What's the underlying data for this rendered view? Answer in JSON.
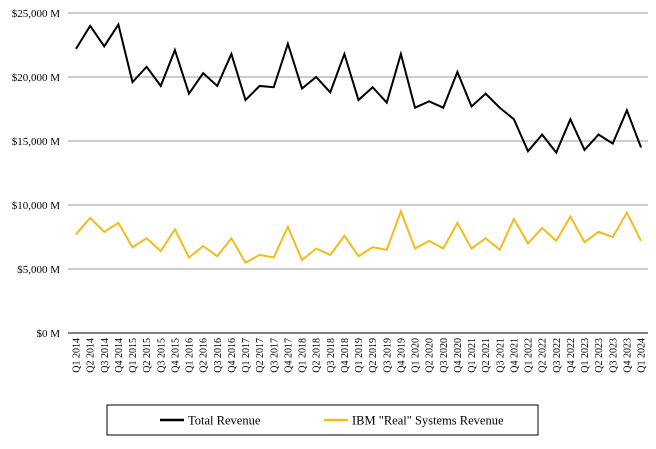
{
  "chart_data": {
    "type": "line",
    "title": "",
    "xlabel": "",
    "ylabel": "",
    "ylim": [
      0,
      25000
    ],
    "y_ticks": [
      0,
      5000,
      10000,
      15000,
      20000,
      25000
    ],
    "y_tick_labels": [
      "$0 M",
      "$5,000 M",
      "$10,000 M",
      "$15,000 M",
      "$20,000 M",
      "$25,000 M"
    ],
    "grid": "horizontal",
    "legend_position": "bottom",
    "categories": [
      "Q1 2014",
      "Q2 2014",
      "Q3 2014",
      "Q4 2014",
      "Q1 2015",
      "Q2 2015",
      "Q3 2015",
      "Q4 2015",
      "Q1 2016",
      "Q2 2016",
      "Q3 2016",
      "Q4 2016",
      "Q1 2017",
      "Q2 2017",
      "Q3 2017",
      "Q4 2017",
      "Q1 2018",
      "Q2 2018",
      "Q3 2018",
      "Q4 2018",
      "Q1 2019",
      "Q2 2019",
      "Q3 2019",
      "Q4 2019",
      "Q1 2020",
      "Q2 2020",
      "Q3 2020",
      "Q4 2020",
      "Q1 2021",
      "Q2 2021",
      "Q3 2021",
      "Q4 2021",
      "Q1 2022",
      "Q2 2022",
      "Q3 2022",
      "Q4 2022",
      "Q1 2023",
      "Q2 2023",
      "Q3 2023",
      "Q4 2023",
      "Q1 2024"
    ],
    "series": [
      {
        "name": "Total Revenue",
        "color": "#000000",
        "values": [
          22200,
          24000,
          22400,
          24100,
          19600,
          20800,
          19300,
          22100,
          18700,
          20300,
          19300,
          21800,
          18200,
          19300,
          19200,
          22600,
          19100,
          20000,
          18800,
          21800,
          18200,
          19200,
          18000,
          21800,
          17600,
          18100,
          17600,
          20400,
          17700,
          18700,
          17600,
          16700,
          14200,
          15500,
          14100,
          16700,
          14300,
          15500,
          14800,
          17400,
          14500
        ]
      },
      {
        "name": "IBM \"Real\" Systems Revenue",
        "color": "#F2BC1B",
        "values": [
          7700,
          9000,
          7900,
          8600,
          6700,
          7400,
          6400,
          8100,
          5900,
          6800,
          6000,
          7400,
          5500,
          6100,
          5900,
          8300,
          5700,
          6600,
          6100,
          7600,
          6000,
          6700,
          6500,
          9500,
          6600,
          7200,
          6600,
          8600,
          6600,
          7400,
          6500,
          8900,
          7000,
          8200,
          7200,
          9100,
          7100,
          7900,
          7500,
          9400,
          7200
        ]
      }
    ]
  }
}
